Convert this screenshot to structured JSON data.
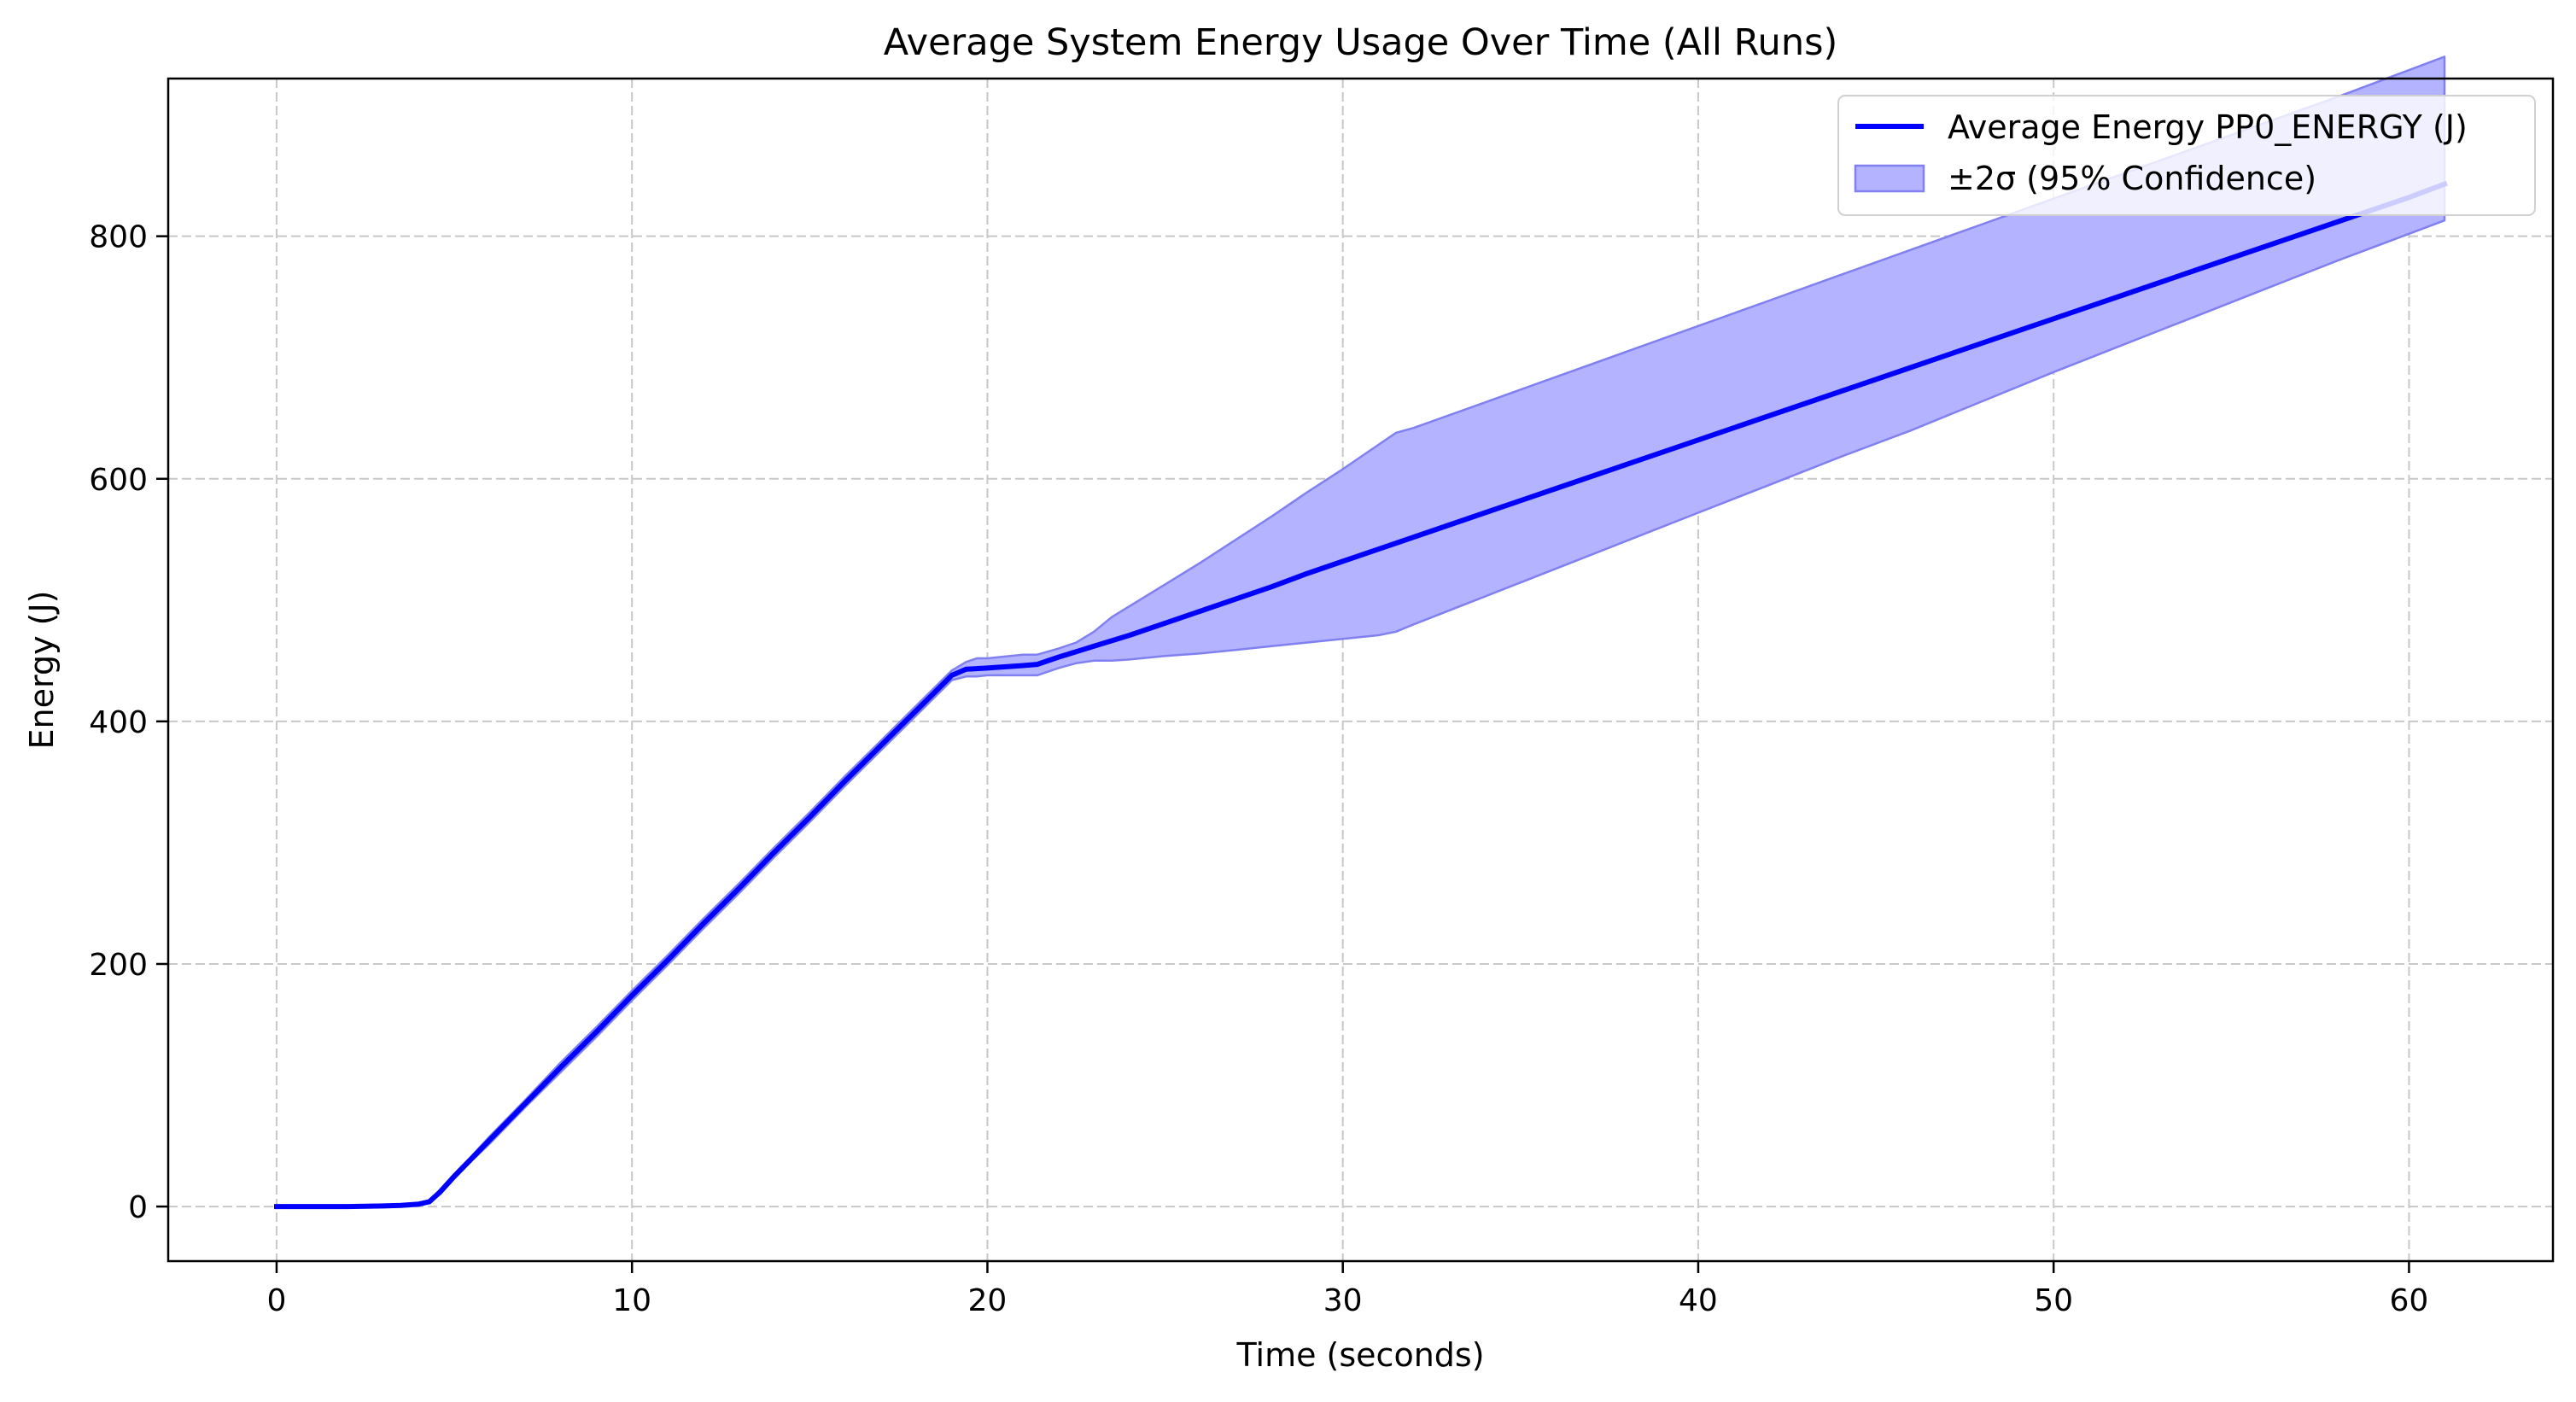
{
  "chart_data": {
    "type": "line",
    "title": "Average System Energy Usage Over Time (All Runs)",
    "xlabel": "Time (seconds)",
    "ylabel": "Energy (J)",
    "xlim": [
      -3.05,
      64.05
    ],
    "ylim": [
      -45,
      930
    ],
    "xticks": [
      0,
      10,
      20,
      30,
      40,
      50,
      60
    ],
    "yticks": [
      0,
      200,
      400,
      600,
      800
    ],
    "grid": true,
    "legend_position": "top-right",
    "colors": {
      "line": "#0000ff",
      "band_fill": "#b3b3ff",
      "band_edge": "#8080f2",
      "grid": "#c8c8c8"
    },
    "series": [
      {
        "name": "Average Energy PP0_ENERGY (J)",
        "kind": "line",
        "x": [
          0,
          1,
          2,
          3,
          3.5,
          4,
          4.3,
          4.6,
          5,
          5.5,
          6,
          7,
          8,
          9,
          10,
          11,
          12,
          13,
          14,
          15,
          16,
          17,
          18,
          19,
          19.4,
          20,
          21,
          21.4,
          22,
          23,
          24,
          25,
          26,
          27,
          28,
          29,
          30,
          31,
          31.5,
          32,
          34,
          36,
          38,
          40,
          42,
          44,
          46,
          48,
          50,
          52,
          54,
          56,
          58,
          60,
          61
        ],
        "y": [
          0,
          0,
          0,
          0.5,
          1,
          2,
          4,
          12,
          25,
          40,
          55,
          85,
          115,
          144,
          174,
          203,
          233,
          262,
          292,
          321,
          351,
          380,
          409,
          438,
          443,
          444,
          446,
          447,
          453,
          462,
          471,
          481,
          491,
          501,
          511,
          522,
          532,
          542,
          547,
          552,
          572,
          592,
          612,
          632,
          652,
          672,
          692,
          712,
          732,
          752,
          772,
          792,
          812,
          832,
          843
        ]
      },
      {
        "name": "±2σ (95% Confidence)",
        "kind": "band",
        "x": [
          0,
          1,
          2,
          3,
          3.5,
          4,
          4.3,
          4.6,
          5,
          5.5,
          6,
          7,
          8,
          9,
          10,
          11,
          12,
          13,
          14,
          15,
          16,
          17,
          18,
          19,
          19.4,
          19.7,
          20,
          21,
          21.4,
          22,
          22.5,
          23,
          23.5,
          24,
          25,
          26,
          27,
          28,
          29,
          30,
          31,
          31.5,
          32,
          34,
          36,
          38,
          40,
          42,
          44,
          46,
          48,
          50,
          52,
          54,
          56,
          58,
          60,
          61
        ],
        "lower": [
          0,
          0,
          0,
          0.5,
          1,
          2,
          4,
          10,
          23,
          38,
          52,
          82,
          111,
          140,
          170,
          199,
          229,
          258,
          288,
          317,
          347,
          376,
          405,
          434,
          437,
          437,
          438,
          438,
          438,
          444,
          448,
          450,
          450,
          451,
          454,
          456,
          459,
          462,
          465,
          468,
          471,
          474,
          480,
          503,
          526,
          549,
          572,
          595,
          618,
          640,
          664,
          688,
          711,
          734,
          757,
          780,
          802,
          813
        ],
        "upper": [
          0,
          0,
          0,
          0.5,
          1,
          2,
          4,
          14,
          27,
          42,
          58,
          88,
          119,
          148,
          178,
          207,
          237,
          266,
          296,
          325,
          355,
          384,
          413,
          442,
          449,
          452,
          452,
          455,
          455,
          460,
          465,
          474,
          486,
          495,
          513,
          531,
          550,
          569,
          589,
          608,
          628,
          638,
          642,
          663,
          684,
          705,
          726,
          747,
          768,
          789,
          810,
          831,
          852,
          873,
          894,
          915,
          937,
          948
        ]
      }
    ]
  }
}
